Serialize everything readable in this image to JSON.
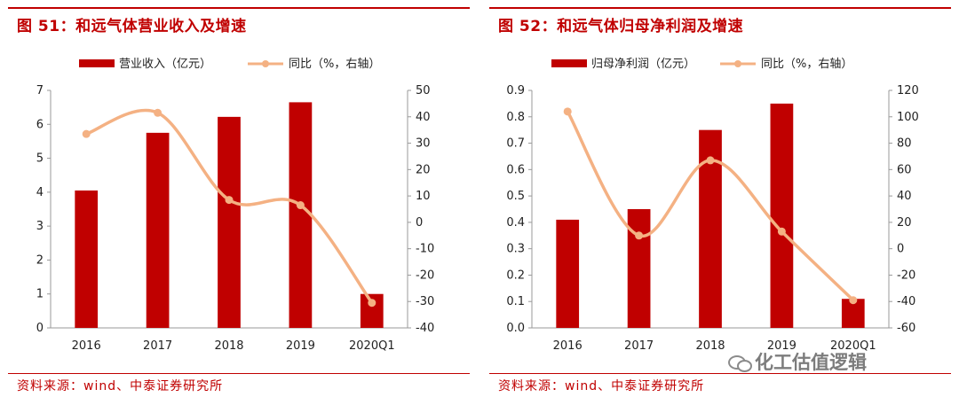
{
  "panels": [
    {
      "title": "图 51：和远气体营业收入及增速",
      "source": "资料来源：wind、中泰证券研究所"
    },
    {
      "title": "图 52：和远气体归母净利润及增速",
      "source": "资料来源：wind、中泰证券研究所"
    }
  ],
  "watermark": "化工估值逻辑",
  "colors": {
    "bar": "#c00000",
    "line": "#f4b183",
    "accent": "#c00000"
  },
  "chart_data": [
    {
      "type": "bar",
      "categories": [
        "2016",
        "2017",
        "2018",
        "2019",
        "2020Q1"
      ],
      "series": [
        {
          "name": "营业收入（亿元）",
          "type": "bar",
          "axis": "left",
          "values": [
            4.05,
            5.75,
            6.22,
            6.65,
            1.0
          ]
        },
        {
          "name": "同比（%，右轴）",
          "type": "line",
          "axis": "right",
          "values": [
            33.5,
            41.5,
            8.5,
            6.5,
            -30.5
          ]
        }
      ],
      "y_left": {
        "min": 0,
        "max": 7,
        "ticks": [
          "0",
          "1",
          "2",
          "3",
          "4",
          "5",
          "6",
          "7"
        ]
      },
      "y_right": {
        "min": -40,
        "max": 50,
        "ticks": [
          "-40",
          "-30",
          "-20",
          "-10",
          "0",
          "10",
          "20",
          "30",
          "40",
          "50"
        ]
      },
      "legend_position": "top",
      "grid": false
    },
    {
      "type": "bar",
      "categories": [
        "2016",
        "2017",
        "2018",
        "2019",
        "2020Q1"
      ],
      "series": [
        {
          "name": "归母净利润（亿元）",
          "type": "bar",
          "axis": "left",
          "values": [
            0.41,
            0.45,
            0.75,
            0.85,
            0.11
          ]
        },
        {
          "name": "同比（%，右轴）",
          "type": "line",
          "axis": "right",
          "values": [
            104,
            10,
            67,
            13,
            -39
          ]
        }
      ],
      "y_left": {
        "min": 0,
        "max": 0.9,
        "ticks": [
          "0.0",
          "0.1",
          "0.2",
          "0.3",
          "0.4",
          "0.5",
          "0.6",
          "0.7",
          "0.8",
          "0.9"
        ]
      },
      "y_right": {
        "min": -60,
        "max": 120,
        "ticks": [
          "-60",
          "-40",
          "-20",
          "0",
          "20",
          "40",
          "60",
          "80",
          "100",
          "120"
        ]
      },
      "legend_position": "top",
      "grid": false
    }
  ]
}
